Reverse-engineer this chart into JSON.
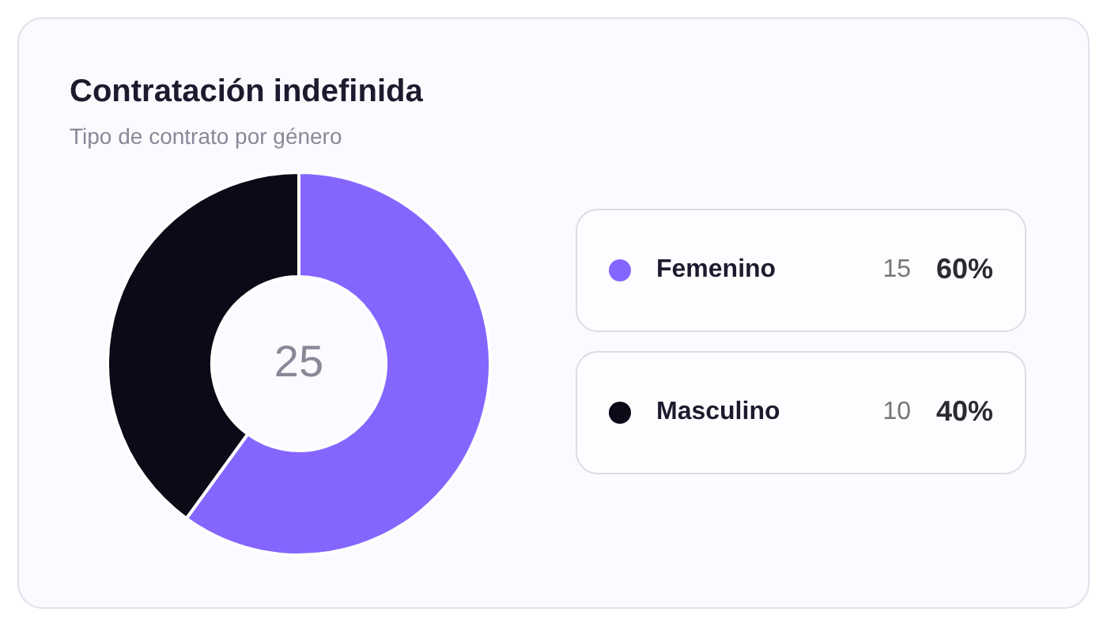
{
  "chart_data": {
    "type": "donut",
    "title": "Contratación indefinida",
    "subtitle": "Tipo de contrato por género",
    "categories": [
      "Femenino",
      "Masculino"
    ],
    "values": [
      60,
      40
    ],
    "colors": [
      "#8466ff",
      "#0b0a17"
    ],
    "value_labels": [
      "60%",
      "40%"
    ],
    "legend": "right",
    "annotations": [
      "25",
      {
        "text": "15",
        "x": "Femenino"
      },
      {
        "text": "10",
        "x": "Masculino"
      }
    ]
  }
}
